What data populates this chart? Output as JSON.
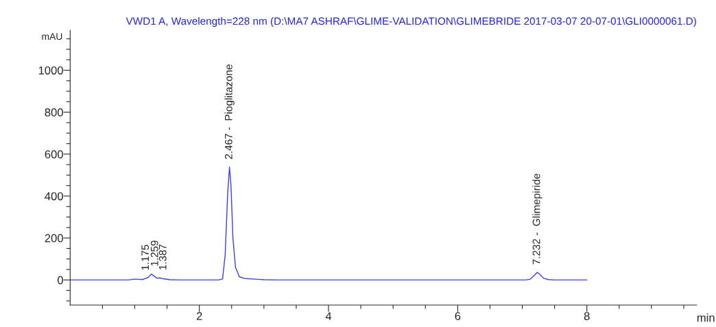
{
  "chart_data": {
    "type": "line",
    "title": "VWD1 A, Wavelength=228 nm (D:\\MA7 ASHRAF\\GLIME-VALIDATION\\GLIMEBRIDE 2017-03-07 20-07-01\\GLI0000061.D)",
    "xlabel": "min",
    "ylabel": "mAU",
    "series": [
      {
        "color": "#3c3cf0",
        "x": [
          0,
          0.9,
          1.0,
          1.05,
          1.12,
          1.175,
          1.2,
          1.259,
          1.3,
          1.35,
          1.387,
          1.45,
          1.55,
          1.7,
          2.3,
          2.36,
          2.4,
          2.44,
          2.467,
          2.49,
          2.52,
          2.56,
          2.62,
          2.7,
          2.9,
          3.0,
          3.2,
          7.05,
          7.12,
          7.18,
          7.232,
          7.28,
          7.33,
          7.4,
          7.5,
          8.0
        ],
        "values": [
          0,
          0,
          4,
          3,
          2,
          8,
          10,
          28,
          18,
          8,
          10,
          5,
          1,
          0,
          0,
          5,
          120,
          420,
          538,
          450,
          200,
          60,
          15,
          7,
          3,
          1,
          0,
          0,
          3,
          20,
          36,
          25,
          8,
          2,
          0,
          0
        ]
      }
    ],
    "annotations": [
      {
        "text": "1.175",
        "x": 1.175,
        "y": 8
      },
      {
        "text": "1.259",
        "x": 1.259,
        "y": 28
      },
      {
        "text": "1.387",
        "x": 1.387,
        "y": 10
      },
      {
        "text": "2.467 -  Pioglitazone",
        "x": 2.467,
        "y": 538
      },
      {
        "text": "7.232 -  Glimepiride",
        "x": 7.232,
        "y": 36
      }
    ],
    "xlim": [
      0,
      9.7
    ],
    "ylim": [
      -120,
      1190
    ],
    "xticks": [
      {
        "value": 0.5,
        "label": null
      },
      {
        "value": 1,
        "label": null
      },
      {
        "value": 1.5,
        "label": null
      },
      2,
      {
        "value": 2.5,
        "label": null
      },
      {
        "value": 3,
        "label": null
      },
      {
        "value": 3.5,
        "label": null
      },
      4,
      {
        "value": 4.5,
        "label": null
      },
      {
        "value": 5,
        "label": null
      },
      {
        "value": 5.5,
        "label": null
      },
      6,
      {
        "value": 6.5,
        "label": null
      },
      {
        "value": 7,
        "label": null
      },
      {
        "value": 7.5,
        "label": null
      },
      8,
      {
        "value": 8.5,
        "label": null
      },
      {
        "value": 9,
        "label": null
      },
      {
        "value": 9.5,
        "label": null
      }
    ],
    "yticks": [
      {
        "value": -100,
        "label": null
      },
      {
        "value": -50,
        "label": null
      },
      0,
      {
        "value": 50,
        "label": null
      },
      {
        "value": 100,
        "label": null
      },
      {
        "value": 150,
        "label": null
      },
      200,
      {
        "value": 250,
        "label": null
      },
      {
        "value": 300,
        "label": null
      },
      {
        "value": 350,
        "label": null
      },
      400,
      {
        "value": 450,
        "label": null
      },
      {
        "value": 500,
        "label": null
      },
      {
        "value": 550,
        "label": null
      },
      600,
      {
        "value": 650,
        "label": null
      },
      {
        "value": 700,
        "label": null
      },
      {
        "value": 750,
        "label": null
      },
      800,
      {
        "value": 850,
        "label": null
      },
      {
        "value": 900,
        "label": null
      },
      {
        "value": 950,
        "label": null
      },
      1000,
      {
        "value": 1050,
        "label": null
      },
      {
        "value": 1100,
        "label": null
      },
      {
        "value": 1150,
        "label": null
      }
    ],
    "grid": false,
    "legend": false
  }
}
